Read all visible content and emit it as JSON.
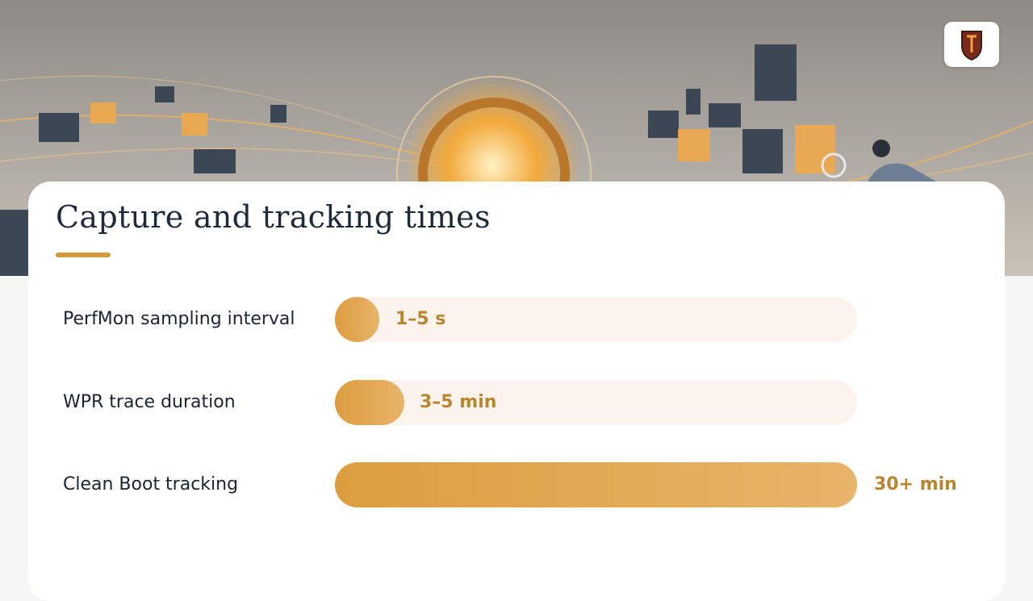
{
  "slide": {
    "title": "Capture and tracking times",
    "rows": [
      {
        "label": "PerfMon sampling interval",
        "value": "1–5 s"
      },
      {
        "label": "WPR trace duration",
        "value": "3–5 min"
      },
      {
        "label": "Clean Boot tracking",
        "value": "30+ min"
      }
    ]
  }
}
